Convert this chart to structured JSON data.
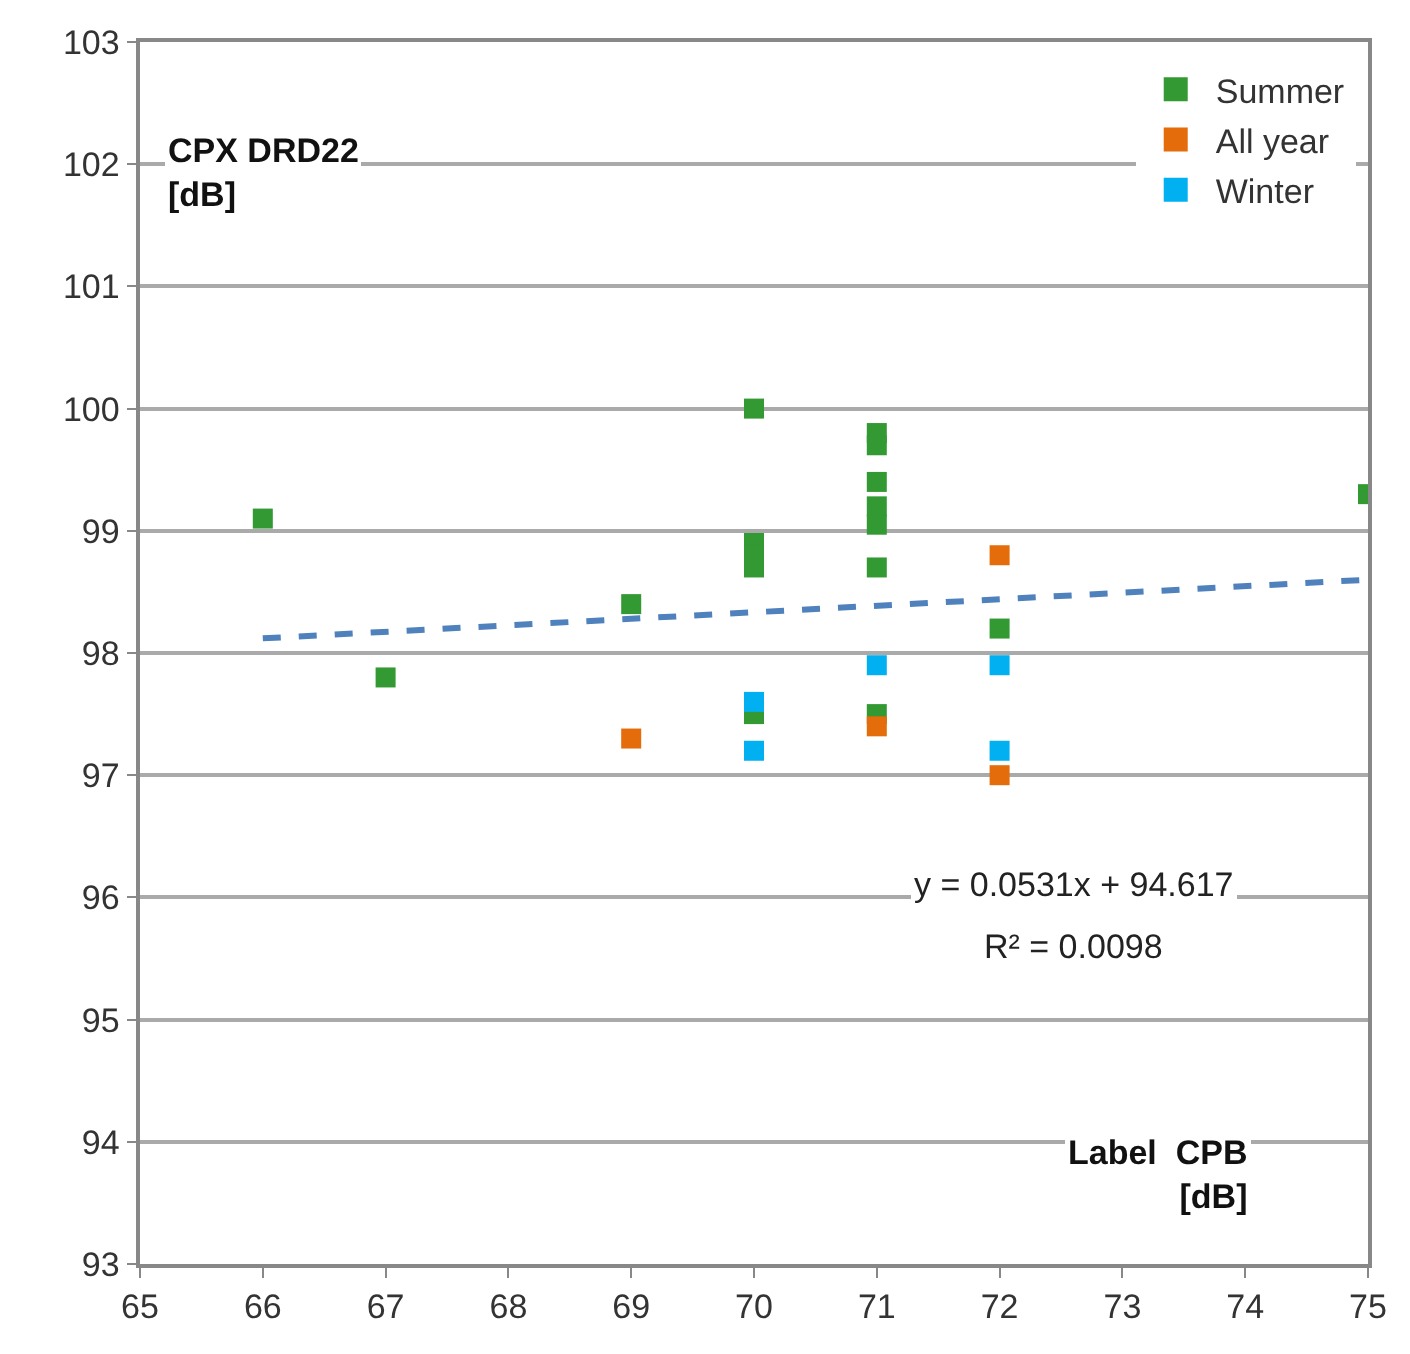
{
  "chart_data": {
    "type": "scatter",
    "xlabel": "Label  CPB\n[dB]",
    "ylabel": "CPX DRD22\n[dB]",
    "xlim": [
      65,
      75
    ],
    "xticks": [
      65,
      66,
      67,
      68,
      69,
      70,
      71,
      72,
      73,
      74,
      75
    ],
    "ylim": [
      93,
      103
    ],
    "yticks": [
      93,
      94,
      95,
      96,
      97,
      98,
      99,
      100,
      101,
      102,
      103
    ],
    "grid": "y",
    "legend": "top right",
    "marker": "square",
    "annotations": [
      "y = 0.0531x + 94.617",
      "R² = 0.0098"
    ],
    "series": [
      {
        "name": "Summer",
        "color": "#339933",
        "x": [
          66,
          67,
          69,
          70,
          70,
          70,
          70,
          70,
          71,
          71,
          71,
          71,
          71,
          71,
          71,
          72,
          75
        ],
        "values": [
          99.1,
          97.8,
          98.4,
          100.0,
          98.9,
          98.8,
          98.7,
          97.5,
          99.8,
          99.7,
          99.4,
          99.2,
          99.05,
          98.7,
          97.5,
          98.2,
          99.3
        ]
      },
      {
        "name": "All year",
        "color": "#e46c0a",
        "x": [
          69,
          71,
          72,
          72
        ],
        "values": [
          97.3,
          97.4,
          98.8,
          97.0
        ]
      },
      {
        "name": "Winter",
        "color": "#00b0f0",
        "x": [
          70,
          70,
          71,
          72,
          72
        ],
        "values": [
          97.6,
          97.2,
          97.9,
          97.9,
          97.2
        ]
      },
      {
        "type": "line",
        "color": "#4f81bd",
        "line_style": "dashed",
        "marker": "none",
        "x": [
          66,
          75
        ],
        "values": [
          98.12,
          98.6
        ]
      }
    ]
  }
}
